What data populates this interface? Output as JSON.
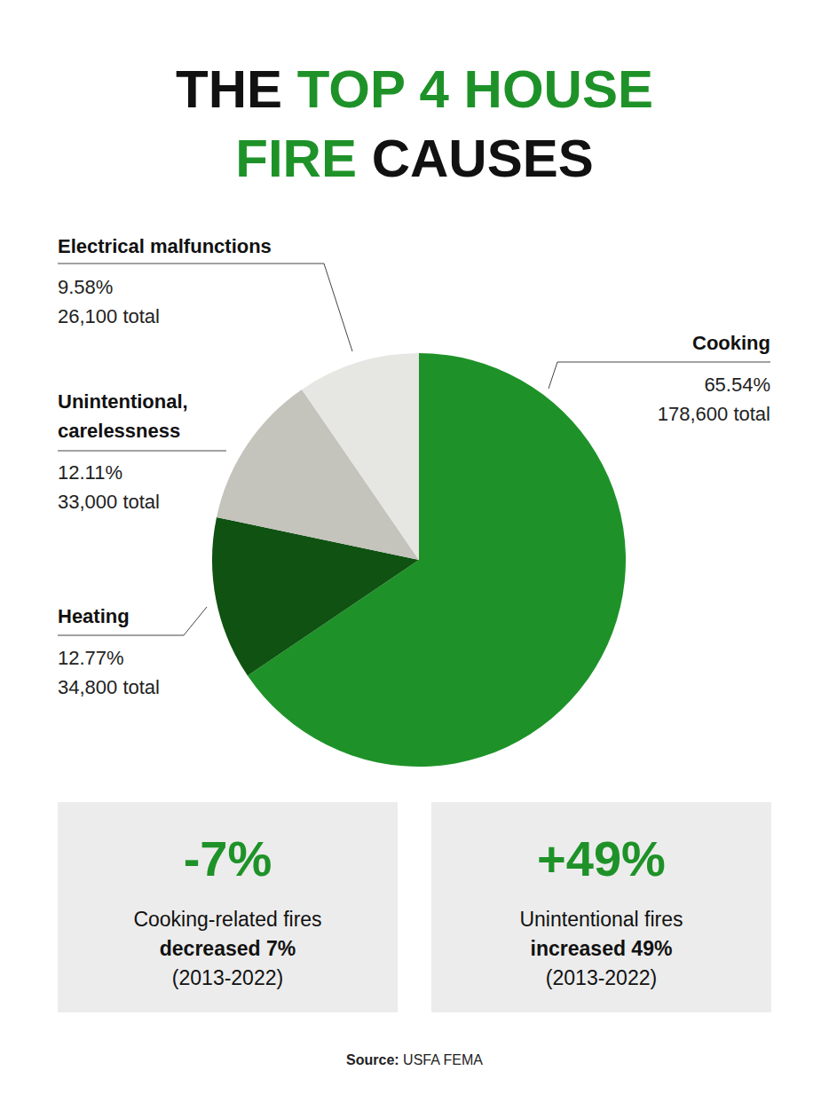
{
  "chart_data": {
    "type": "pie",
    "title": "THE TOP 4 HOUSE FIRE CAUSES",
    "title_highlight": "TOP 4 HOUSE FIRE",
    "categories": [
      "Cooking",
      "Heating",
      "Unintentional, carelessness",
      "Electrical malfunctions"
    ],
    "values": [
      65.54,
      12.77,
      12.11,
      9.58
    ],
    "value_labels": [
      "65.54%",
      "12.77%",
      "12.11%",
      "9.58%"
    ],
    "total_labels": [
      "178,600 total",
      "34,800 total",
      "33,000 total",
      "26,100 total"
    ],
    "colors": [
      "#1e9228",
      "#0f5212",
      "#c4c3bc",
      "#e6e6e3"
    ]
  },
  "stats": [
    {
      "label": "-7%",
      "text": "Cooking-related fires",
      "bold": "decreased 7%",
      "period": "(2013-2022)"
    },
    {
      "label": "+49%",
      "text": "Unintentional fires",
      "bold": "increased 49%",
      "period": "(2013-2022)"
    }
  ],
  "source_label": "Source:",
  "source": "USFA FEMA"
}
